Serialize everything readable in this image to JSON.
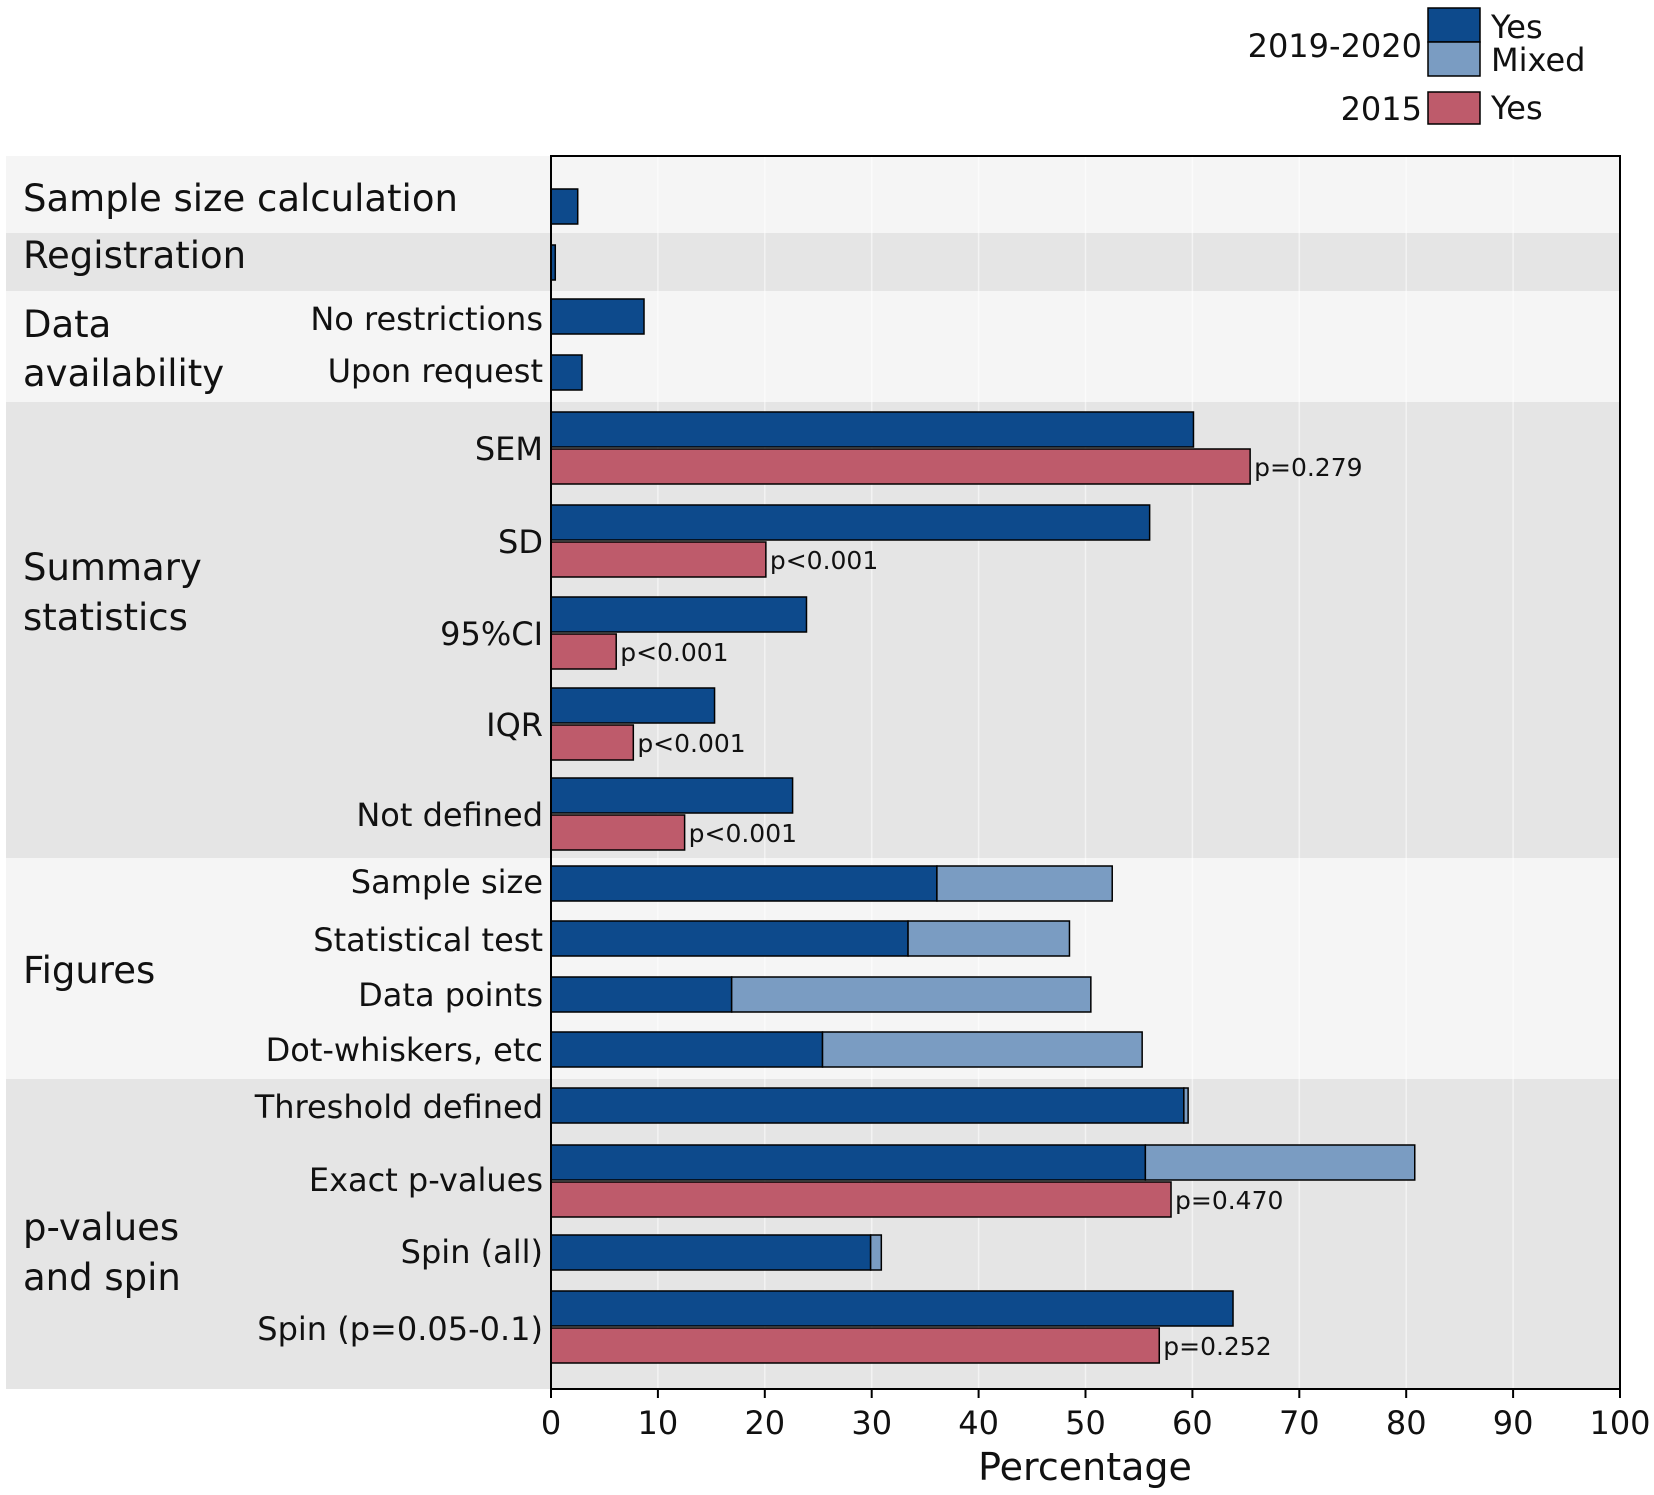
{
  "chart_data": {
    "type": "bar",
    "orientation": "horizontal",
    "stacked_series": [
      "Yes",
      "Mixed"
    ],
    "xlabel": "Percentage",
    "xlim": [
      0,
      100
    ],
    "xticks": [
      0,
      10,
      20,
      30,
      40,
      50,
      60,
      70,
      80,
      90,
      100
    ],
    "grid": true,
    "legend": {
      "placement": "top-right",
      "groups": [
        {
          "group": "2019-2020",
          "entries": [
            {
              "name": "Yes",
              "color": "#0d4a8c"
            },
            {
              "name": "Mixed",
              "color": "#7a9cc2"
            }
          ]
        },
        {
          "group": "2015",
          "entries": [
            {
              "name": "Yes",
              "color": "#be5b6b"
            }
          ]
        }
      ]
    },
    "colors": {
      "yes_2019": "#0d4a8c",
      "mixed_2019": "#7a9cc2",
      "yes_2015": "#be5b6b",
      "band_light": "#f5f5f5",
      "band_dark": "#e5e5e5"
    },
    "sections": [
      {
        "label": "Sample size calculation",
        "label_lines": [
          "Sample size calculation"
        ],
        "rows": [
          {
            "label": "",
            "yes_2019": 2.5,
            "mixed_2019": 0
          }
        ]
      },
      {
        "label": "Registration",
        "label_lines": [
          "Registration"
        ],
        "rows": [
          {
            "label": "",
            "yes_2019": 0.4,
            "mixed_2019": 0
          }
        ]
      },
      {
        "label": "Data availability",
        "label_lines": [
          "Data",
          "availability"
        ],
        "rows": [
          {
            "label": "No restrictions",
            "yes_2019": 8.7,
            "mixed_2019": 0
          },
          {
            "label": "Upon request",
            "yes_2019": 2.9,
            "mixed_2019": 0
          }
        ]
      },
      {
        "label": "Summary statistics",
        "label_lines": [
          "Summary",
          "statistics"
        ],
        "rows": [
          {
            "label": "SEM",
            "yes_2019": 60.1,
            "mixed_2019": 0,
            "yes_2015": 65.4,
            "p": "p=0.279"
          },
          {
            "label": "SD",
            "yes_2019": 56.0,
            "mixed_2019": 0,
            "yes_2015": 20.1,
            "p": "p<0.001"
          },
          {
            "label": "95%CI",
            "yes_2019": 23.9,
            "mixed_2019": 0,
            "yes_2015": 6.1,
            "p": "p<0.001"
          },
          {
            "label": "IQR",
            "yes_2019": 15.3,
            "mixed_2019": 0,
            "yes_2015": 7.7,
            "p": "p<0.001"
          },
          {
            "label": "Not defined",
            "yes_2019": 22.6,
            "mixed_2019": 0,
            "yes_2015": 12.5,
            "p": "p<0.001"
          }
        ]
      },
      {
        "label": "Figures",
        "label_lines": [
          "Figures"
        ],
        "rows": [
          {
            "label": "Sample size",
            "yes_2019": 36.1,
            "mixed_2019": 16.4
          },
          {
            "label": "Statistical test",
            "yes_2019": 33.4,
            "mixed_2019": 15.1
          },
          {
            "label": "Data points",
            "yes_2019": 16.9,
            "mixed_2019": 33.6
          },
          {
            "label": "Dot-whiskers, etc",
            "yes_2019": 25.4,
            "mixed_2019": 29.9
          }
        ]
      },
      {
        "label": "p-values and spin",
        "label_lines": [
          "p-values",
          "and spin"
        ],
        "rows": [
          {
            "label": "Threshold defined",
            "yes_2019": 59.2,
            "mixed_2019": 0.4
          },
          {
            "label": "Exact p-values",
            "yes_2019": 55.6,
            "mixed_2019": 25.2,
            "yes_2015": 58.0,
            "p": "p=0.470"
          },
          {
            "label": "Spin (all)",
            "yes_2019": 29.9,
            "mixed_2019": 1.0
          },
          {
            "label": "Spin (p=0.05-0.1)",
            "yes_2019": 63.8,
            "mixed_2019": 0,
            "yes_2015": 56.9,
            "p": "p=0.252"
          }
        ]
      }
    ]
  }
}
